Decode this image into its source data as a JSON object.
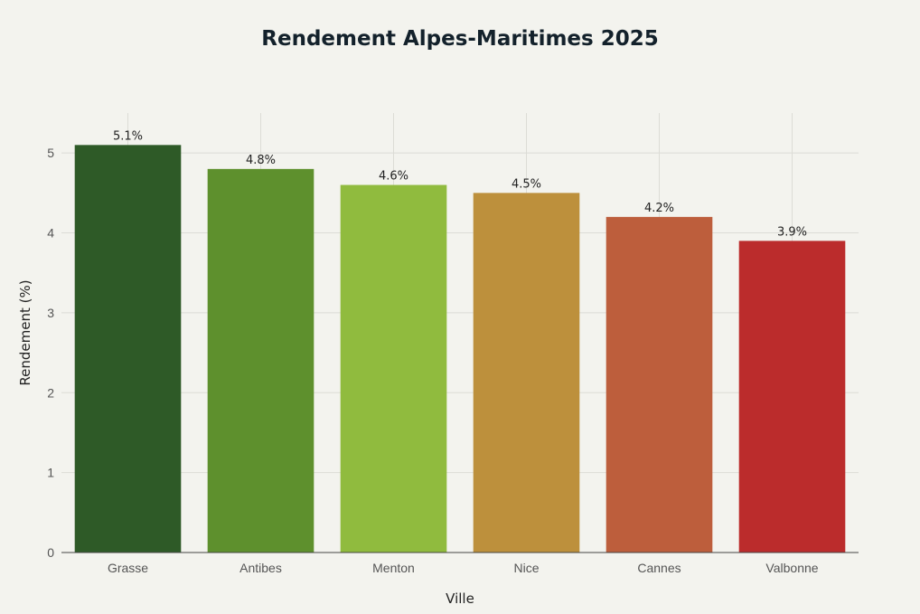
{
  "chart_data": {
    "type": "bar",
    "title": "Rendement Alpes-Maritimes 2025",
    "xlabel": "Ville",
    "ylabel": "Rendement (%)",
    "categories": [
      "Grasse",
      "Antibes",
      "Menton",
      "Nice",
      "Cannes",
      "Valbonne"
    ],
    "values": [
      5.1,
      4.8,
      4.6,
      4.5,
      4.2,
      3.9
    ],
    "data_labels": [
      "5.1%",
      "4.8%",
      "4.6%",
      "4.5%",
      "4.2%",
      "3.9%"
    ],
    "colors": [
      "#2e5a27",
      "#5e902d",
      "#90bb3e",
      "#bd903c",
      "#bd5e3c",
      "#bb2c2c"
    ],
    "yticks": [
      0,
      1,
      2,
      3,
      4,
      5
    ],
    "ylim": [
      0,
      5.5
    ],
    "grid": true,
    "legend": "none"
  }
}
